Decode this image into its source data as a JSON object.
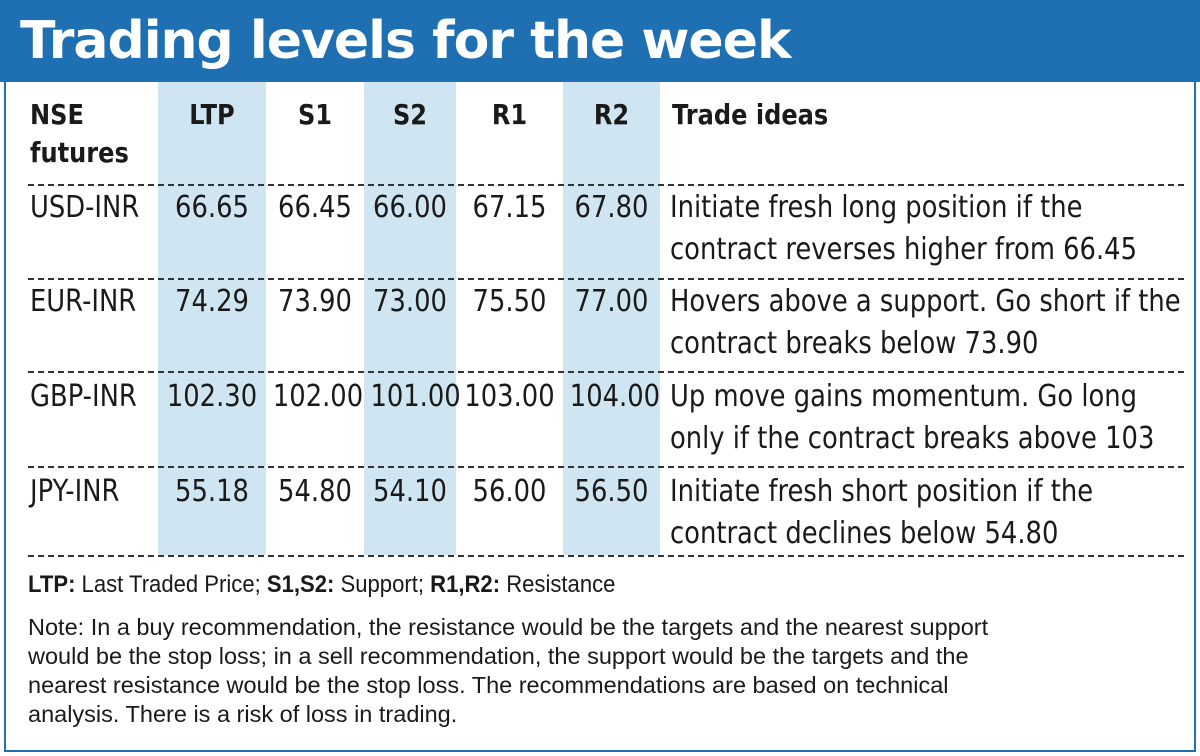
{
  "title": "Trading levels for the week",
  "columns": {
    "futures_line1": "NSE",
    "futures_line2": "futures",
    "ltp": "LTP",
    "s1": "S1",
    "s2": "S2",
    "r1": "R1",
    "r2": "R2",
    "trade_ideas": "Trade ideas"
  },
  "rows": [
    {
      "future": "USD-INR",
      "ltp": "66.65",
      "s1": "66.45",
      "s2": "66.00",
      "r1": "67.15",
      "r2": "67.80",
      "idea_line1": "Initiate fresh long position if the",
      "idea_line2": "contract reverses higher from 66.45"
    },
    {
      "future": "EUR-INR",
      "ltp": "74.29",
      "s1": "73.90",
      "s2": "73.00",
      "r1": "75.50",
      "r2": "77.00",
      "idea_line1": "Hovers above a support. Go short if the",
      "idea_line2": "contract breaks below 73.90"
    },
    {
      "future": "GBP-INR",
      "ltp": "102.30",
      "s1": "102.00",
      "s2": "101.00",
      "r1": "103.00",
      "r2": "104.00",
      "idea_line1": "Up move gains momentum. Go long",
      "idea_line2": "only if the contract breaks above 103"
    },
    {
      "future": "JPY-INR",
      "ltp": "55.18",
      "s1": "54.80",
      "s2": "54.10",
      "r1": "56.00",
      "r2": "56.50",
      "idea_line1": "Initiate fresh short position if the",
      "idea_line2": "contract declines below 54.80"
    }
  ],
  "legend": {
    "ltp_key": "LTP:",
    "ltp_text": " Last Traded Price; ",
    "s_key": "S1,S2:",
    "s_text": " Support; ",
    "r_key": "R1,R2:",
    "r_text": " Resistance"
  },
  "note": {
    "line1": "Note: In a buy recommendation, the resistance would be the targets and the nearest support",
    "line2": "would be the stop loss; in a sell recommendation, the support would be the targets and the",
    "line3": "nearest resistance would be the stop loss. The recommendations are based on technical",
    "line4": "analysis. There is a risk of loss in trading."
  },
  "colors": {
    "title_bar": "#1f6fb3",
    "column_shade": "#cfe5f1"
  }
}
